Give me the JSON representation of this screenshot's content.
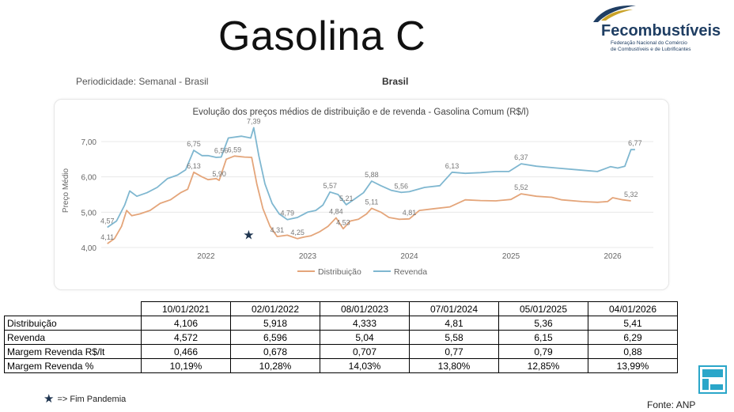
{
  "header": {
    "title": "Gasolina C",
    "periodicity": "Periodicidade: Semanal - Brasil",
    "region": "Brasil"
  },
  "logo": {
    "name": "Fecombustíveis",
    "subtitle_line1": "Federação Nacional do Comércio",
    "subtitle_line2": "de Combustíveis e de Lubrificantes"
  },
  "colors": {
    "distribuicao": "#e4a57a",
    "revenda": "#7fb7d0",
    "marker": "#1f3550"
  },
  "chart_data": {
    "type": "line",
    "title": "Evolução dos preços médios de distribuição e de revenda - Gasolina Comum (R$/l)",
    "ylabel": "Preço Médio",
    "xlabel": "",
    "ylim": [
      4.0,
      7.2
    ],
    "yticks": [
      "4,00",
      "5,00",
      "6,00",
      "7,00"
    ],
    "xticks": [
      {
        "x": 2022,
        "label": "2022"
      },
      {
        "x": 2023,
        "label": "2023"
      },
      {
        "x": 2024,
        "label": "2024"
      },
      {
        "x": 2025,
        "label": "2025"
      },
      {
        "x": 2026,
        "label": "2026"
      }
    ],
    "xlim": [
      2020.97,
      2026.4
    ],
    "legend_position": "bottom",
    "grid": true,
    "series": [
      {
        "name": "Distribuição",
        "color": "#e4a57a",
        "points": [
          [
            2021.03,
            4.11
          ],
          [
            2021.1,
            4.25
          ],
          [
            2021.17,
            4.6
          ],
          [
            2021.22,
            5.05
          ],
          [
            2021.27,
            4.9
          ],
          [
            2021.35,
            4.95
          ],
          [
            2021.45,
            5.05
          ],
          [
            2021.55,
            5.25
          ],
          [
            2021.65,
            5.35
          ],
          [
            2021.75,
            5.55
          ],
          [
            2021.82,
            5.65
          ],
          [
            2021.88,
            6.13
          ],
          [
            2021.96,
            6.0
          ],
          [
            2022.02,
            5.92
          ],
          [
            2022.1,
            5.95
          ],
          [
            2022.13,
            5.9
          ],
          [
            2022.2,
            6.5
          ],
          [
            2022.28,
            6.59
          ],
          [
            2022.38,
            6.56
          ],
          [
            2022.45,
            6.55
          ],
          [
            2022.5,
            5.8
          ],
          [
            2022.56,
            5.1
          ],
          [
            2022.63,
            4.6
          ],
          [
            2022.7,
            4.31
          ],
          [
            2022.8,
            4.35
          ],
          [
            2022.9,
            4.25
          ],
          [
            2022.97,
            4.3
          ],
          [
            2023.03,
            4.33
          ],
          [
            2023.12,
            4.45
          ],
          [
            2023.2,
            4.6
          ],
          [
            2023.28,
            4.84
          ],
          [
            2023.35,
            4.53
          ],
          [
            2023.42,
            4.75
          ],
          [
            2023.5,
            4.8
          ],
          [
            2023.58,
            4.95
          ],
          [
            2023.63,
            5.11
          ],
          [
            2023.72,
            5.0
          ],
          [
            2023.8,
            4.85
          ],
          [
            2023.9,
            4.8
          ],
          [
            2024.0,
            4.81
          ],
          [
            2024.1,
            5.05
          ],
          [
            2024.25,
            5.1
          ],
          [
            2024.4,
            5.15
          ],
          [
            2024.55,
            5.35
          ],
          [
            2024.7,
            5.33
          ],
          [
            2024.85,
            5.32
          ],
          [
            2025.0,
            5.36
          ],
          [
            2025.1,
            5.52
          ],
          [
            2025.25,
            5.45
          ],
          [
            2025.4,
            5.42
          ],
          [
            2025.5,
            5.35
          ],
          [
            2025.7,
            5.3
          ],
          [
            2025.85,
            5.28
          ],
          [
            2025.95,
            5.3
          ],
          [
            2026.0,
            5.41
          ],
          [
            2026.1,
            5.35
          ],
          [
            2026.18,
            5.32
          ]
        ],
        "labels": [
          {
            "x": 2021.03,
            "y": 4.11,
            "text": "4,11"
          },
          {
            "x": 2021.88,
            "y": 6.13,
            "text": "6,13"
          },
          {
            "x": 2022.13,
            "y": 5.9,
            "text": "5,90"
          },
          {
            "x": 2022.28,
            "y": 6.59,
            "text": "6,59"
          },
          {
            "x": 2022.7,
            "y": 4.31,
            "text": "4,31"
          },
          {
            "x": 2022.9,
            "y": 4.25,
            "text": "4,25"
          },
          {
            "x": 2023.28,
            "y": 4.84,
            "text": "4,84"
          },
          {
            "x": 2023.35,
            "y": 4.53,
            "text": "4,53"
          },
          {
            "x": 2023.63,
            "y": 5.11,
            "text": "5,11"
          },
          {
            "x": 2024.0,
            "y": 4.81,
            "text": "4,81"
          },
          {
            "x": 2025.1,
            "y": 5.52,
            "text": "5,52"
          },
          {
            "x": 2026.18,
            "y": 5.32,
            "text": "5,32"
          }
        ]
      },
      {
        "name": "Revenda",
        "color": "#7fb7d0",
        "points": [
          [
            2021.03,
            4.57
          ],
          [
            2021.12,
            4.75
          ],
          [
            2021.2,
            5.2
          ],
          [
            2021.25,
            5.6
          ],
          [
            2021.32,
            5.45
          ],
          [
            2021.42,
            5.55
          ],
          [
            2021.52,
            5.7
          ],
          [
            2021.62,
            5.95
          ],
          [
            2021.72,
            6.05
          ],
          [
            2021.8,
            6.2
          ],
          [
            2021.88,
            6.75
          ],
          [
            2021.96,
            6.6
          ],
          [
            2022.02,
            6.6
          ],
          [
            2022.1,
            6.55
          ],
          [
            2022.15,
            6.56
          ],
          [
            2022.22,
            7.1
          ],
          [
            2022.35,
            7.15
          ],
          [
            2022.44,
            7.1
          ],
          [
            2022.47,
            7.39
          ],
          [
            2022.52,
            6.6
          ],
          [
            2022.58,
            5.8
          ],
          [
            2022.65,
            5.25
          ],
          [
            2022.72,
            4.95
          ],
          [
            2022.8,
            4.79
          ],
          [
            2022.9,
            4.85
          ],
          [
            2023.0,
            5.0
          ],
          [
            2023.08,
            5.05
          ],
          [
            2023.15,
            5.2
          ],
          [
            2023.22,
            5.57
          ],
          [
            2023.3,
            5.5
          ],
          [
            2023.38,
            5.21
          ],
          [
            2023.45,
            5.35
          ],
          [
            2023.55,
            5.55
          ],
          [
            2023.63,
            5.88
          ],
          [
            2023.72,
            5.75
          ],
          [
            2023.82,
            5.62
          ],
          [
            2023.92,
            5.56
          ],
          [
            2024.0,
            5.58
          ],
          [
            2024.15,
            5.7
          ],
          [
            2024.3,
            5.75
          ],
          [
            2024.42,
            6.13
          ],
          [
            2024.55,
            6.1
          ],
          [
            2024.7,
            6.12
          ],
          [
            2024.85,
            6.15
          ],
          [
            2024.98,
            6.15
          ],
          [
            2025.1,
            6.37
          ],
          [
            2025.25,
            6.3
          ],
          [
            2025.45,
            6.25
          ],
          [
            2025.65,
            6.2
          ],
          [
            2025.85,
            6.15
          ],
          [
            2025.98,
            6.29
          ],
          [
            2026.05,
            6.25
          ],
          [
            2026.12,
            6.3
          ],
          [
            2026.18,
            6.77
          ],
          [
            2026.22,
            6.77
          ]
        ],
        "labels": [
          {
            "x": 2021.03,
            "y": 4.57,
            "text": "4,57"
          },
          {
            "x": 2021.88,
            "y": 6.75,
            "text": "6,75"
          },
          {
            "x": 2022.15,
            "y": 6.56,
            "text": "6,56"
          },
          {
            "x": 2022.47,
            "y": 7.39,
            "text": "7,39"
          },
          {
            "x": 2022.8,
            "y": 4.79,
            "text": "4,79"
          },
          {
            "x": 2023.22,
            "y": 5.57,
            "text": "5,57"
          },
          {
            "x": 2023.38,
            "y": 5.21,
            "text": "5,21"
          },
          {
            "x": 2023.63,
            "y": 5.88,
            "text": "5,88"
          },
          {
            "x": 2023.92,
            "y": 5.56,
            "text": "5,56"
          },
          {
            "x": 2024.42,
            "y": 6.13,
            "text": "6,13"
          },
          {
            "x": 2025.1,
            "y": 6.37,
            "text": "6,37"
          },
          {
            "x": 2026.22,
            "y": 6.77,
            "text": "6,77"
          }
        ]
      }
    ],
    "annotations": [
      {
        "type": "star",
        "x": 2022.42,
        "y": 4.35,
        "meaning": "Fim Pandemia"
      }
    ]
  },
  "table": {
    "columns": [
      "10/01/2021",
      "02/01/2022",
      "08/01/2023",
      "07/01/2024",
      "05/01/2025",
      "04/01/2026"
    ],
    "rows": [
      {
        "label": "Distribuição",
        "values": [
          "4,106",
          "5,918",
          "4,333",
          "4,81",
          "5,36",
          "5,41"
        ]
      },
      {
        "label": "Revenda",
        "values": [
          "4,572",
          "6,596",
          "5,04",
          "5,58",
          "6,15",
          "6,29"
        ]
      },
      {
        "label": "Margem Revenda R$/lt",
        "values": [
          "0,466",
          "0,678",
          "0,707",
          "0,77",
          "0,79",
          "0,88"
        ]
      },
      {
        "label": "Margem Revenda %",
        "values": [
          "10,19%",
          "10,28%",
          "14,03%",
          "13,80%",
          "12,85%",
          "13,99%"
        ]
      }
    ]
  },
  "footnote": {
    "symbol": "★",
    "text": "=> Fim Pandemia"
  },
  "source": "Fonte: ANP"
}
